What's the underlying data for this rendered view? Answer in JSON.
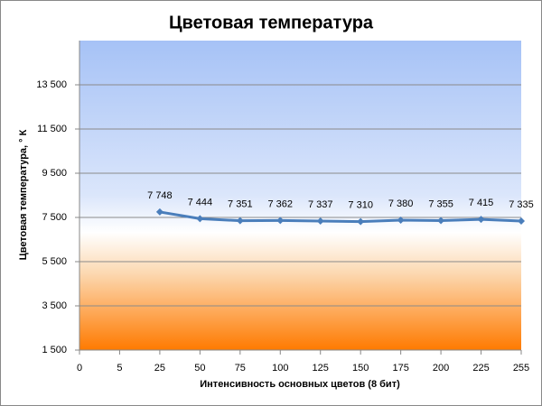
{
  "chart_data": {
    "type": "line",
    "title": "Цветовая температура",
    "x_label": "Интенсивность  основных  цветов  (8 бит)",
    "y_label": "Цветовая  температура,  ° К",
    "categories": [
      "0",
      "5",
      "25",
      "50",
      "75",
      "100",
      "125",
      "150",
      "175",
      "200",
      "225",
      "255"
    ],
    "series": [
      {
        "name": "Цветовая температура",
        "color": "#4a7ebb",
        "values": [
          null,
          null,
          7748,
          7444,
          7351,
          7362,
          7337,
          7310,
          7380,
          7355,
          7415,
          7335
        ],
        "value_labels": [
          null,
          null,
          "7 748",
          "7 444",
          "7 351",
          "7 362",
          "7 337",
          "7 310",
          "7 380",
          "7 355",
          "7 415",
          "7 335"
        ]
      }
    ],
    "ylim": [
      1500,
      15500
    ],
    "yticks": [
      {
        "value": 1500,
        "label": "1 500"
      },
      {
        "value": 3500,
        "label": "3 500"
      },
      {
        "value": 5500,
        "label": "5 500"
      },
      {
        "value": 7500,
        "label": "7 500"
      },
      {
        "value": 9500,
        "label": "9 500"
      },
      {
        "value": 11500,
        "label": "11 500"
      },
      {
        "value": 13500,
        "label": "13 500"
      }
    ],
    "grid": true
  }
}
